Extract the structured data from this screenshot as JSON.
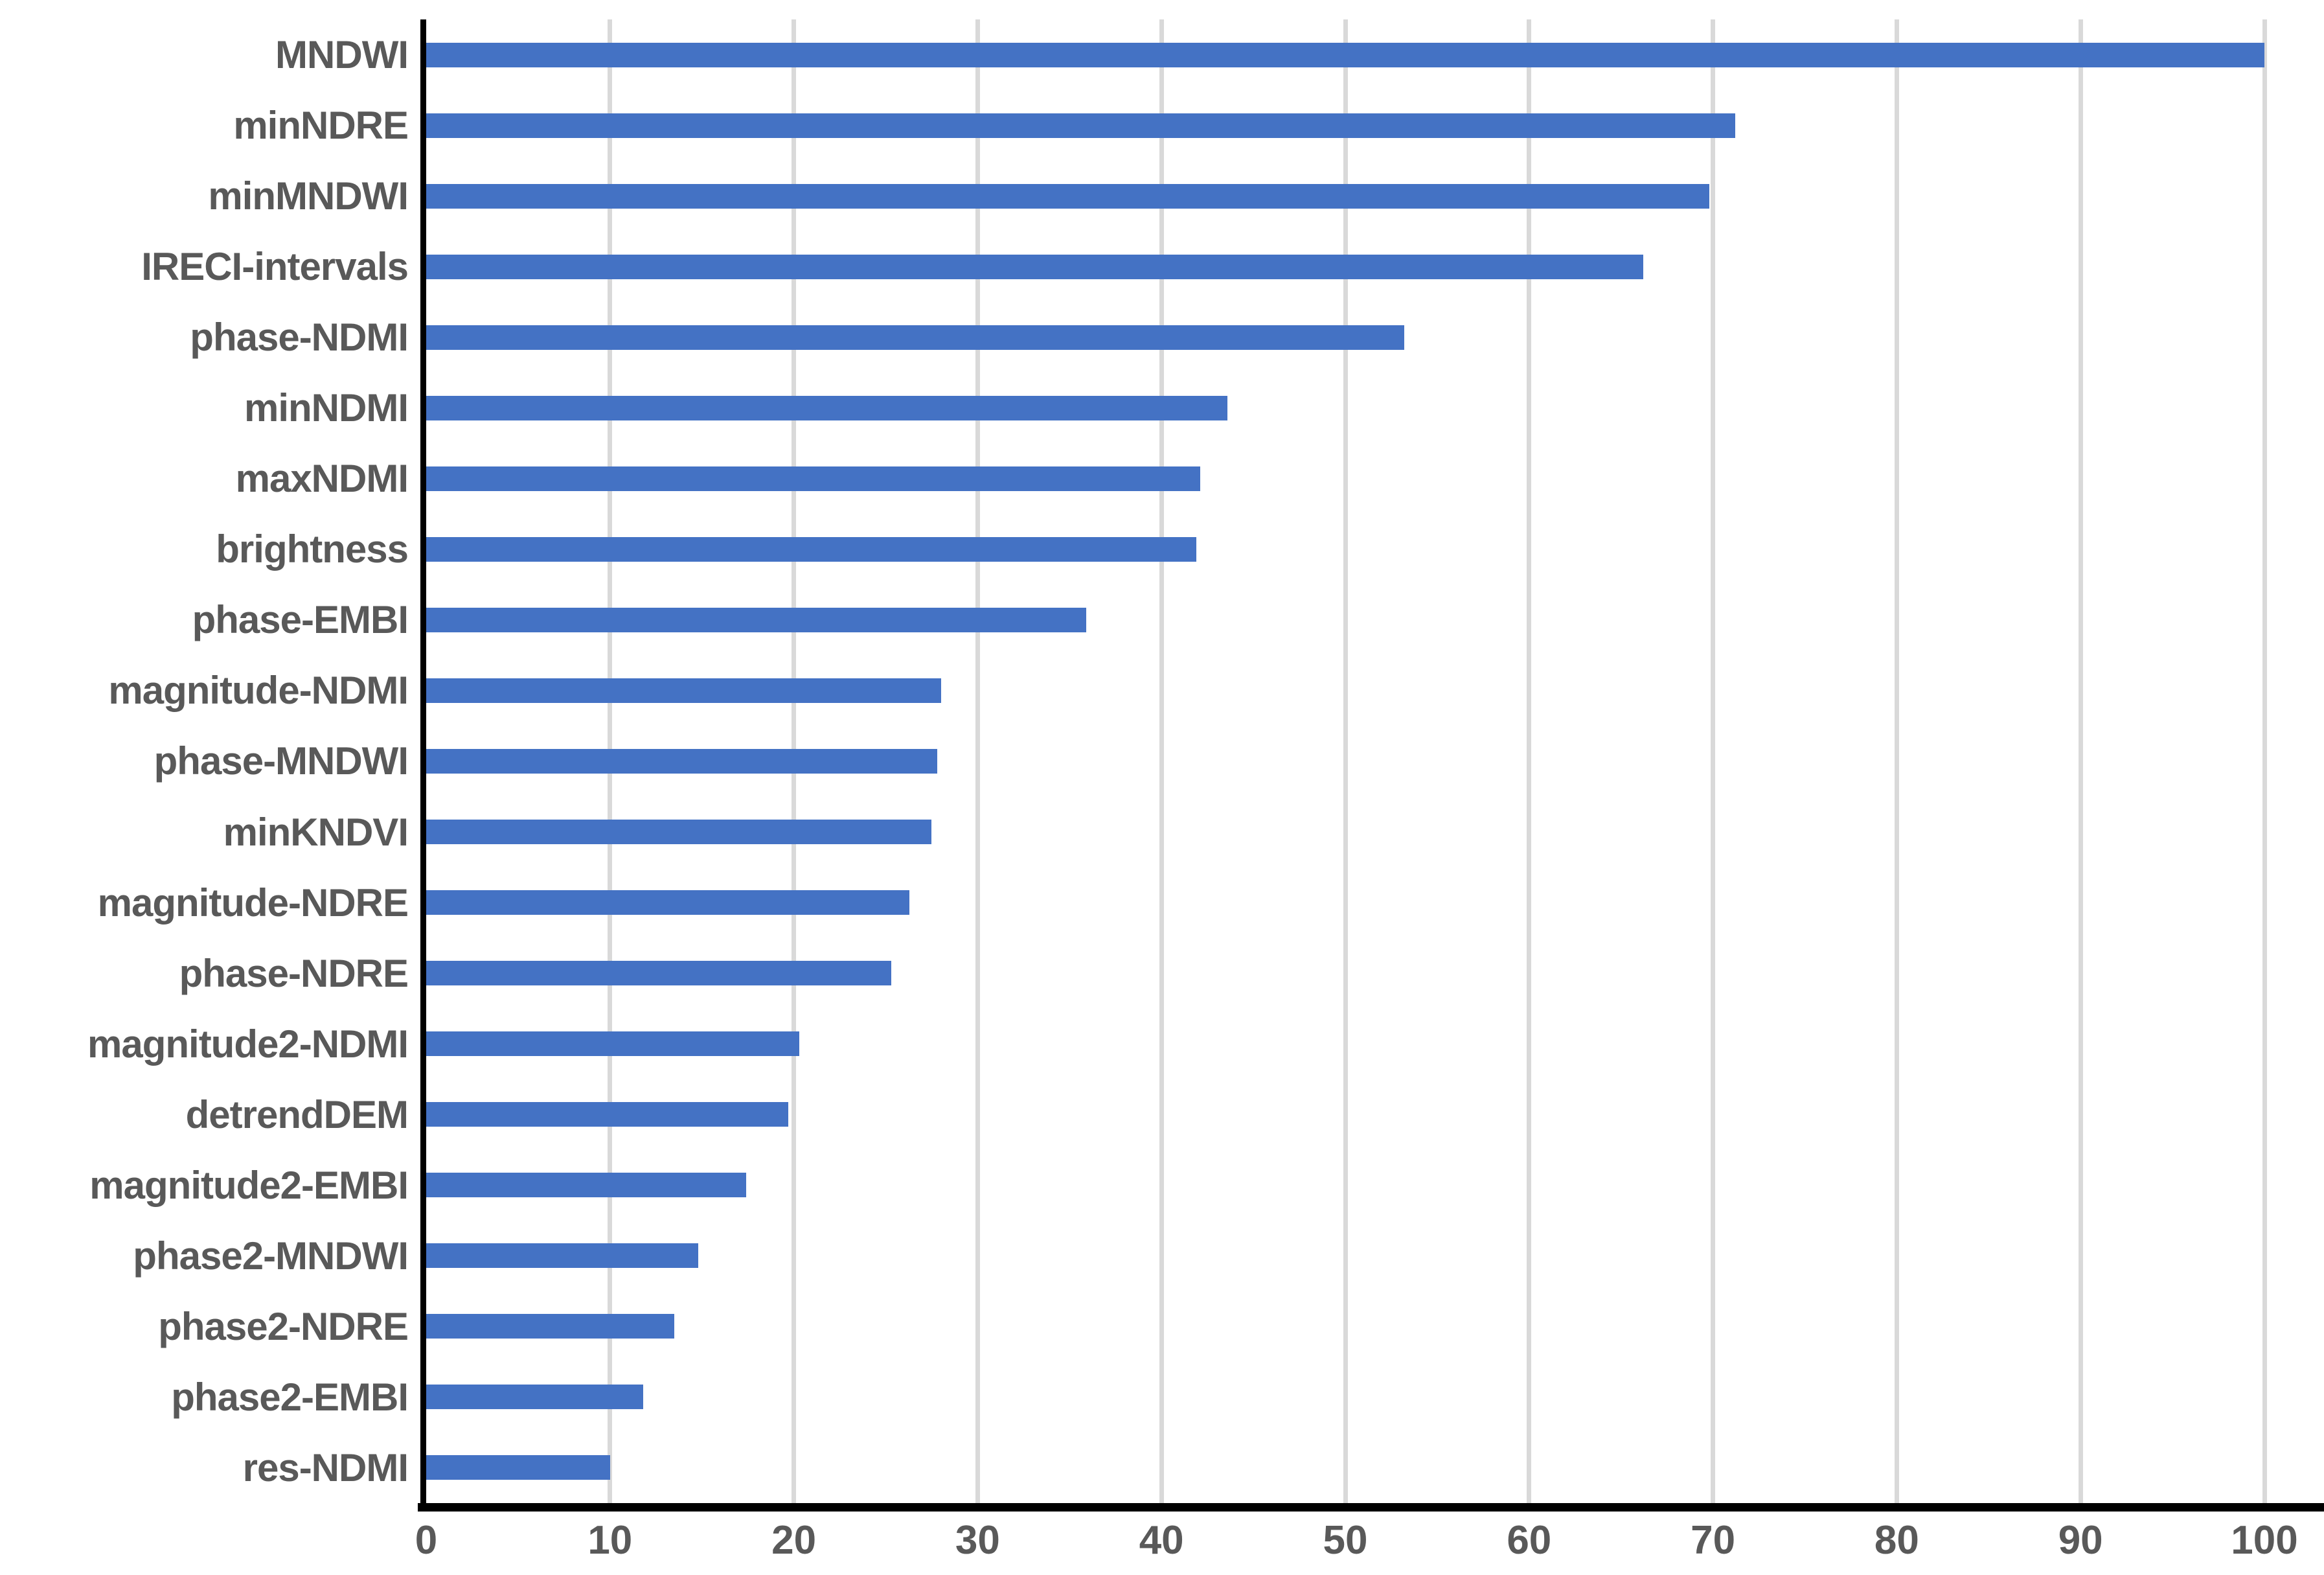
{
  "chart_data": {
    "type": "bar",
    "orientation": "horizontal",
    "title": "",
    "xlabel": "",
    "ylabel": "",
    "xlim": [
      0,
      100
    ],
    "x_ticks": [
      0,
      10,
      20,
      30,
      40,
      50,
      60,
      70,
      80,
      90,
      100
    ],
    "grid": "vertical",
    "legend_position": "none",
    "categories": [
      "MNDWI",
      "minNDRE",
      "minMNDWI",
      "IRECI-intervals",
      "phase-NDMI",
      "minNDMI",
      "maxNDMI",
      "brightness",
      "phase-EMBI",
      "magnitude-NDMI",
      "phase-MNDWI",
      "minKNDVI",
      "magnitude-NDRE",
      "phase-NDRE",
      "magnitude2-NDMI",
      "detrendDEM",
      "magnitude2-EMBI",
      "phase2-MNDWI",
      "phase2-NDRE",
      "phase2-EMBI",
      "res-NDMI"
    ],
    "values": [
      100,
      71.2,
      69.8,
      66.2,
      53.2,
      43.6,
      42.1,
      41.9,
      35.9,
      28.0,
      27.8,
      27.5,
      26.3,
      25.3,
      20.3,
      19.7,
      17.4,
      14.8,
      13.5,
      11.8,
      10.0
    ]
  },
  "colors": {
    "bar": "#4472C4",
    "gridline": "#D9D9D9",
    "axis_line": "#000000",
    "tick_text": "#595959",
    "label_text": "#595959",
    "background": "#FFFFFF"
  }
}
